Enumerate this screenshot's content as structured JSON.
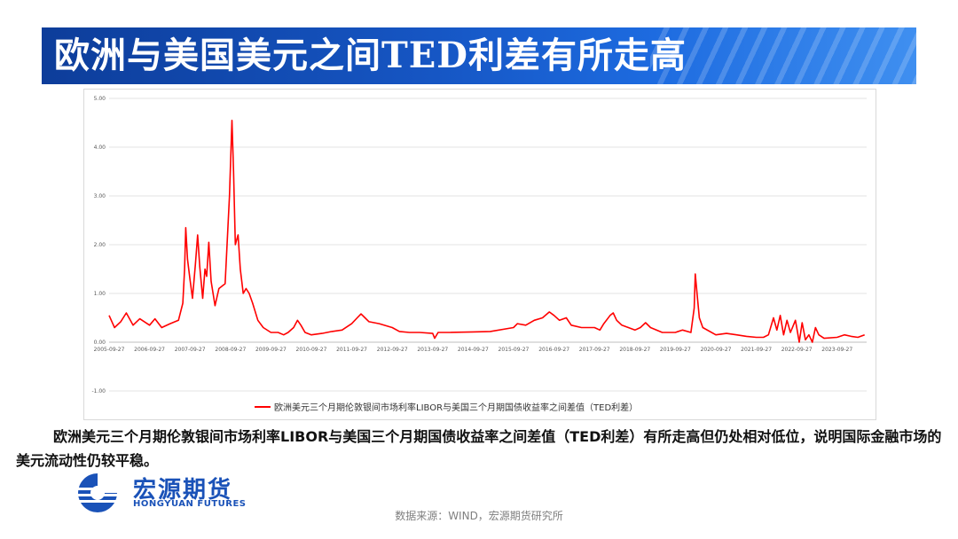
{
  "banner": {
    "title": "欧洲与美国美元之间TED利差有所走高"
  },
  "chart_data": {
    "type": "line",
    "title": "",
    "xlabel": "",
    "ylabel": "",
    "ylim": [
      -1.0,
      5.0
    ],
    "y_ticks": [
      "5.00",
      "4.00",
      "3.00",
      "2.00",
      "1.00",
      "0.00",
      "-1.00"
    ],
    "x_ticks": [
      "2005-09-27",
      "2006-09-27",
      "2007-09-27",
      "2008-09-27",
      "2009-09-27",
      "2010-09-27",
      "2011-09-27",
      "2012-09-27",
      "2013-09-27",
      "2014-09-27",
      "2015-09-27",
      "2016-09-27",
      "2017-09-27",
      "2018-09-27",
      "2019-09-27",
      "2020-09-27",
      "2021-09-27",
      "2022-09-27",
      "2023-09-27"
    ],
    "legend_position": "bottom",
    "grid": true,
    "series": [
      {
        "name": "欧洲美元三个月期伦敦银间市场利率LIBOR与美国三个月期国债收益率之间差值（TED利差）",
        "color": "#ff0000",
        "points": [
          [
            "2005-09-27",
            0.55
          ],
          [
            "2005-11-15",
            0.3
          ],
          [
            "2006-01-10",
            0.42
          ],
          [
            "2006-03-01",
            0.6
          ],
          [
            "2006-05-01",
            0.35
          ],
          [
            "2006-07-01",
            0.48
          ],
          [
            "2006-09-27",
            0.35
          ],
          [
            "2006-11-15",
            0.48
          ],
          [
            "2007-01-15",
            0.3
          ],
          [
            "2007-04-01",
            0.38
          ],
          [
            "2007-06-15",
            0.45
          ],
          [
            "2007-07-25",
            0.8
          ],
          [
            "2007-08-10",
            1.5
          ],
          [
            "2007-08-20",
            2.35
          ],
          [
            "2007-09-05",
            1.7
          ],
          [
            "2007-09-27",
            1.3
          ],
          [
            "2007-10-20",
            0.9
          ],
          [
            "2007-11-15",
            1.6
          ],
          [
            "2007-12-05",
            2.2
          ],
          [
            "2007-12-25",
            1.55
          ],
          [
            "2008-01-20",
            0.9
          ],
          [
            "2008-02-10",
            1.5
          ],
          [
            "2008-02-25",
            1.35
          ],
          [
            "2008-03-15",
            2.05
          ],
          [
            "2008-04-05",
            1.25
          ],
          [
            "2008-05-10",
            0.75
          ],
          [
            "2008-06-15",
            1.1
          ],
          [
            "2008-08-10",
            1.2
          ],
          [
            "2008-09-18",
            3.0
          ],
          [
            "2008-10-10",
            4.55
          ],
          [
            "2008-10-25",
            3.5
          ],
          [
            "2008-11-10",
            2.0
          ],
          [
            "2008-12-05",
            2.2
          ],
          [
            "2008-12-25",
            1.5
          ],
          [
            "2009-01-20",
            1.0
          ],
          [
            "2009-02-15",
            1.1
          ],
          [
            "2009-03-15",
            1.0
          ],
          [
            "2009-04-15",
            0.8
          ],
          [
            "2009-06-01",
            0.45
          ],
          [
            "2009-07-20",
            0.3
          ],
          [
            "2009-09-27",
            0.2
          ],
          [
            "2009-12-01",
            0.2
          ],
          [
            "2010-01-20",
            0.15
          ],
          [
            "2010-03-01",
            0.2
          ],
          [
            "2010-04-20",
            0.3
          ],
          [
            "2010-05-25",
            0.45
          ],
          [
            "2010-06-25",
            0.35
          ],
          [
            "2010-08-01",
            0.2
          ],
          [
            "2010-09-27",
            0.15
          ],
          [
            "2011-01-01",
            0.18
          ],
          [
            "2011-04-01",
            0.22
          ],
          [
            "2011-07-01",
            0.25
          ],
          [
            "2011-09-27",
            0.38
          ],
          [
            "2011-11-15",
            0.5
          ],
          [
            "2011-12-20",
            0.58
          ],
          [
            "2012-01-25",
            0.5
          ],
          [
            "2012-03-01",
            0.42
          ],
          [
            "2012-06-01",
            0.38
          ],
          [
            "2012-09-27",
            0.3
          ],
          [
            "2012-12-01",
            0.22
          ],
          [
            "2013-03-01",
            0.2
          ],
          [
            "2013-06-01",
            0.2
          ],
          [
            "2013-09-27",
            0.18
          ],
          [
            "2013-10-15",
            0.08
          ],
          [
            "2013-11-15",
            0.2
          ],
          [
            "2014-03-01",
            0.2
          ],
          [
            "2014-09-27",
            0.21
          ],
          [
            "2015-03-01",
            0.22
          ],
          [
            "2015-09-27",
            0.3
          ],
          [
            "2015-11-01",
            0.38
          ],
          [
            "2016-01-15",
            0.35
          ],
          [
            "2016-04-01",
            0.45
          ],
          [
            "2016-06-15",
            0.5
          ],
          [
            "2016-08-15",
            0.62
          ],
          [
            "2016-09-27",
            0.55
          ],
          [
            "2016-11-15",
            0.45
          ],
          [
            "2017-01-15",
            0.5
          ],
          [
            "2017-03-01",
            0.35
          ],
          [
            "2017-06-01",
            0.3
          ],
          [
            "2017-09-27",
            0.3
          ],
          [
            "2017-11-15",
            0.25
          ],
          [
            "2017-12-20",
            0.38
          ],
          [
            "2018-02-15",
            0.55
          ],
          [
            "2018-03-15",
            0.6
          ],
          [
            "2018-04-15",
            0.45
          ],
          [
            "2018-06-01",
            0.35
          ],
          [
            "2018-09-27",
            0.25
          ],
          [
            "2018-11-15",
            0.3
          ],
          [
            "2019-01-01",
            0.4
          ],
          [
            "2019-02-15",
            0.3
          ],
          [
            "2019-06-01",
            0.2
          ],
          [
            "2019-09-27",
            0.2
          ],
          [
            "2019-12-01",
            0.25
          ],
          [
            "2020-02-15",
            0.2
          ],
          [
            "2020-03-15",
            0.7
          ],
          [
            "2020-03-25",
            1.4
          ],
          [
            "2020-04-10",
            1.0
          ],
          [
            "2020-05-01",
            0.5
          ],
          [
            "2020-06-01",
            0.3
          ],
          [
            "2020-09-27",
            0.15
          ],
          [
            "2021-01-01",
            0.18
          ],
          [
            "2021-04-01",
            0.15
          ],
          [
            "2021-07-01",
            0.12
          ],
          [
            "2021-09-27",
            0.1
          ],
          [
            "2021-12-01",
            0.1
          ],
          [
            "2022-01-15",
            0.15
          ],
          [
            "2022-03-01",
            0.5
          ],
          [
            "2022-04-01",
            0.25
          ],
          [
            "2022-05-01",
            0.55
          ],
          [
            "2022-06-01",
            0.15
          ],
          [
            "2022-07-01",
            0.45
          ],
          [
            "2022-08-01",
            0.2
          ],
          [
            "2022-09-15",
            0.45
          ],
          [
            "2022-09-27",
            0.3
          ],
          [
            "2022-10-20",
            0.0
          ],
          [
            "2022-11-15",
            0.4
          ],
          [
            "2022-12-15",
            0.05
          ],
          [
            "2023-01-15",
            0.15
          ],
          [
            "2023-02-15",
            0.0
          ],
          [
            "2023-03-15",
            0.3
          ],
          [
            "2023-04-15",
            0.15
          ],
          [
            "2023-06-01",
            0.08
          ],
          [
            "2023-09-27",
            0.1
          ],
          [
            "2023-12-01",
            0.15
          ],
          [
            "2024-02-01",
            0.12
          ],
          [
            "2024-04-01",
            0.1
          ],
          [
            "2024-06-01",
            0.15
          ]
        ]
      }
    ]
  },
  "caption": {
    "text": "欧洲美元三个月期伦敦银间市场利率LIBOR与美国三个月期国债收益率之间差值（TED利差）有所走高但仍处相对低位，说明国际金融市场的美元流动性仍较平稳。"
  },
  "logo": {
    "name_cn": "宏源期货",
    "name_en": "HONGYUAN FUTURES"
  },
  "source": {
    "text": "数据来源：WIND，宏源期货研究所"
  },
  "colors": {
    "banner": "#1656c4",
    "line": "#ff0000",
    "brand": "#1a52b8"
  }
}
